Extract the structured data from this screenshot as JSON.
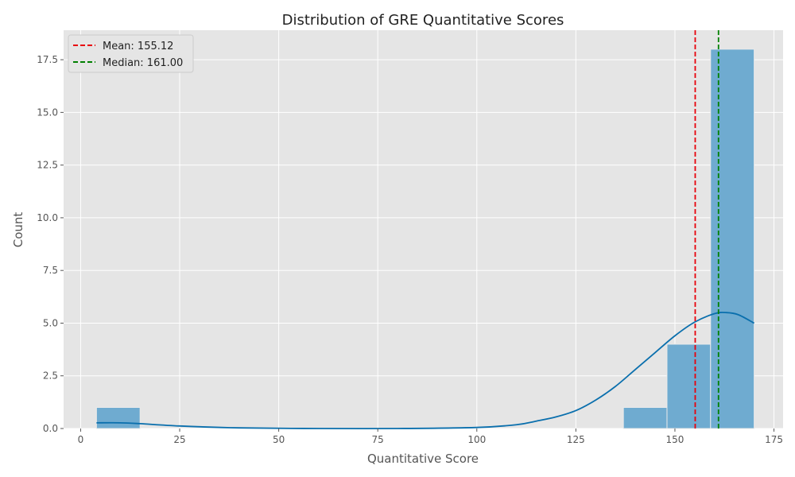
{
  "chart_data": {
    "type": "bar",
    "title": "Distribution of GRE Quantitative Scores",
    "xlabel": "Quantitative Score",
    "ylabel": "Count",
    "xlim": [
      -4.3,
      177.3
    ],
    "ylim": [
      0,
      18.9
    ],
    "x_ticks": [
      0,
      25,
      50,
      75,
      100,
      125,
      150,
      175
    ],
    "y_ticks": [
      0,
      2.5,
      5,
      7.5,
      10,
      12.5,
      15,
      17.5
    ],
    "y_tick_labels": [
      "0.0",
      "2.5",
      "5.0",
      "7.5",
      "10.0",
      "12.5",
      "15.0",
      "17.5"
    ],
    "grid": true,
    "bins": [
      {
        "start": 4,
        "end": 15,
        "count": 1
      },
      {
        "start": 137,
        "end": 148,
        "count": 1
      },
      {
        "start": 148,
        "end": 159,
        "count": 4
      },
      {
        "start": 159,
        "end": 170,
        "count": 18
      }
    ],
    "kde": {
      "x": [
        4,
        10,
        15,
        25,
        40,
        60,
        80,
        100,
        110,
        115,
        120,
        125,
        130,
        135,
        140,
        145,
        150,
        155,
        160,
        163,
        166,
        170
      ],
      "y": [
        0.27,
        0.27,
        0.23,
        0.12,
        0.03,
        0.0,
        0.0,
        0.05,
        0.18,
        0.35,
        0.55,
        0.85,
        1.35,
        2.0,
        2.8,
        3.6,
        4.4,
        5.05,
        5.45,
        5.5,
        5.4,
        5.0
      ]
    },
    "lines": [
      {
        "label": "Mean: 155.12",
        "value": 155.12,
        "color": "#e8000b",
        "style": "dashed"
      },
      {
        "label": "Median: 161.00",
        "value": 161.0,
        "color": "#008000",
        "style": "dashed"
      }
    ],
    "legend_position": "top-left",
    "colors": {
      "bar_fill": "#6fabd0",
      "bar_edge": "#eaeaea",
      "kde_line": "#0a6fad",
      "plot_bg": "#e5e5e5",
      "grid": "#ffffff"
    }
  }
}
